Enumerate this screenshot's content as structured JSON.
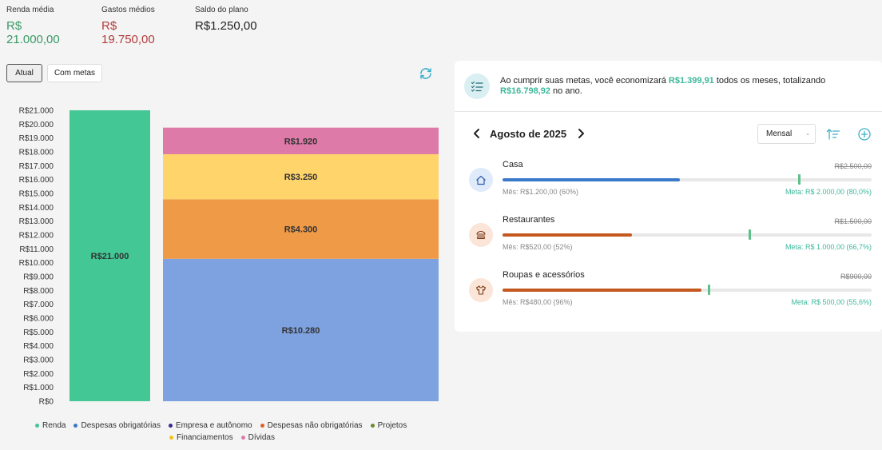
{
  "summary": {
    "income_label": "Renda média",
    "income_value": "R$ 21.000,00",
    "expense_label": "Gastos médios",
    "expense_value": "R$ 19.750,00",
    "balance_label": "Saldo do plano",
    "balance_value": "R$1.250,00"
  },
  "view_toggle": {
    "current": "Atual",
    "with_goals": "Com metas"
  },
  "colors": {
    "income": "#42c795",
    "mandatory": "#7ea2e0",
    "nonmandatory": "#ef9a47",
    "financing": "#ffd56b",
    "debts": "#de7aa8",
    "accent": "#3cb89b",
    "income_text": "#3a9a67",
    "expense_text": "#b23c3c"
  },
  "chart_data": {
    "type": "bar",
    "y_ticks": [
      "R$21.000",
      "R$20.000",
      "R$19.000",
      "R$18.000",
      "R$17.000",
      "R$16.000",
      "R$15.000",
      "R$14.000",
      "R$13.000",
      "R$12.000",
      "R$11.000",
      "R$10.000",
      "R$9.000",
      "R$8.000",
      "R$7.000",
      "R$6.000",
      "R$5.000",
      "R$4.000",
      "R$3.000",
      "R$2.000",
      "R$1.000",
      "R$0"
    ],
    "ylim": [
      0,
      21000
    ],
    "bars": [
      {
        "segments": [
          {
            "series": "Renda",
            "value": 21000,
            "label": "R$21.000",
            "color": "#42c795"
          }
        ]
      },
      {
        "segments": [
          {
            "series": "Despesas obrigatórias",
            "value": 10280,
            "label": "R$10.280",
            "color": "#7ea2e0"
          },
          {
            "series": "Despesas não obrigatórias",
            "value": 4300,
            "label": "R$4.300",
            "color": "#ef9a47"
          },
          {
            "series": "Financiamentos",
            "value": 3250,
            "label": "R$3.250",
            "color": "#ffd56b"
          },
          {
            "series": "Dívidas",
            "value": 1920,
            "label": "R$1.920",
            "color": "#de7aa8"
          }
        ]
      }
    ],
    "legend": [
      {
        "name": "Renda",
        "color": "#42c795"
      },
      {
        "name": "Despesas obrigatórias",
        "color": "#3a78c9"
      },
      {
        "name": "Empresa e autônomo",
        "color": "#3b2a8c"
      },
      {
        "name": "Despesas não obrigatórias",
        "color": "#d9622b"
      },
      {
        "name": "Projetos",
        "color": "#6d8a2a"
      },
      {
        "name": "Financiamentos",
        "color": "#f5c21b"
      },
      {
        "name": "Dívidas",
        "color": "#de7aa8"
      }
    ]
  },
  "tip": {
    "text_before": "Ao cumprir suas metas, você economizará ",
    "monthly_saving": "R$1.399,91",
    "text_middle": " todos os meses, totalizando ",
    "yearly_saving": "R$16.798,92",
    "text_after": " no ano."
  },
  "period": {
    "title": "Agosto de 2025",
    "frequency": "Mensal"
  },
  "categories": [
    {
      "name": "Casa",
      "limit": "R$2.500,00",
      "month_text": "Mês: R$1.200,00 (60%)",
      "goal_text": "Meta: R$ 2.000,00 (80,0%)",
      "progress": 0.48,
      "goal_position": 0.8,
      "bar_color": "#3a78c9",
      "icon_bg": "#dfeafb",
      "icon": "house-icon"
    },
    {
      "name": "Restaurantes",
      "limit": "R$1.500,00",
      "month_text": "Mês: R$520,00 (52%)",
      "goal_text": "Meta: R$ 1.000,00 (66,7%)",
      "progress": 0.35,
      "goal_position": 0.667,
      "bar_color": "#c4581f",
      "icon_bg": "#fbe5d8",
      "icon": "burger-icon"
    },
    {
      "name": "Roupas e acessórios",
      "limit": "R$900,00",
      "month_text": "Mês: R$480,00 (96%)",
      "goal_text": "Meta: R$ 500,00 (55,6%)",
      "progress": 0.54,
      "goal_position": 0.556,
      "bar_color": "#c4581f",
      "icon_bg": "#fbe5d8",
      "icon": "shirt-icon"
    }
  ]
}
